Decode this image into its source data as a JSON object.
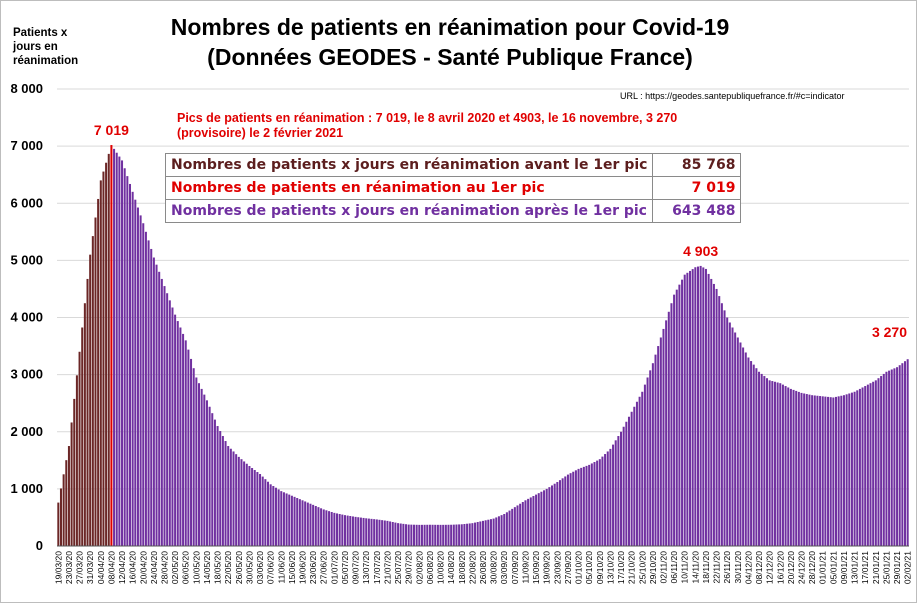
{
  "title_line1": "Nombres de patients en réanimation pour Covid-19",
  "title_line2": "(Données GEODES - Santé Publique France)",
  "ylabel": "Patients x\njours en\nréanimation",
  "url": "URL : https://geodes.santepubliquefrance.fr/#c=indicator",
  "peaks_note": "Pics de patients en réanimation : 7 019, le 8 avril 2020 et 4903, le 16 novembre, 3 270 (provisoire) le 2 février 2021",
  "stats_table": [
    {
      "label": "Nombres de patients x jours en réanimation avant le 1er pic",
      "value": "85 768",
      "color": "#5c1e1e"
    },
    {
      "label": "Nombres de patients en réanimation au 1er pic",
      "value": "7 019",
      "color": "#e00000"
    },
    {
      "label": "Nombres de patients x jours en réanimation après le 1er pic",
      "value": "643 488",
      "color": "#7030a0"
    }
  ],
  "colors": {
    "before_peak": "#6b2626",
    "peak": "#e00000",
    "after_peak": "#7030a0"
  },
  "chart_data": {
    "type": "bar",
    "title": "Nombres de patients en réanimation pour Covid-19",
    "subtitle": "(Données GEODES - Santé Publique France)",
    "ylabel": "Patients x jours en réanimation",
    "ylim": [
      0,
      8000
    ],
    "yticks": [
      0,
      1000,
      2000,
      3000,
      4000,
      5000,
      6000,
      7000,
      8000
    ],
    "ytick_labels": [
      "0",
      "1 000",
      "2 000",
      "3 000",
      "4 000",
      "5 000",
      "6 000",
      "7 000",
      "8 000"
    ],
    "grid": true,
    "start_date": "19/03/20",
    "end_date": "02/02/21",
    "xtick_labels": [
      "19/03/20",
      "23/03/20",
      "27/03/20",
      "31/03/20",
      "04/04/20",
      "08/04/20",
      "12/04/20",
      "16/04/20",
      "20/04/20",
      "24/04/20",
      "28/04/20",
      "02/05/20",
      "06/05/20",
      "10/05/20",
      "14/05/20",
      "18/05/20",
      "22/05/20",
      "26/05/20",
      "30/05/20",
      "03/06/20",
      "07/06/20",
      "11/06/20",
      "15/06/20",
      "19/06/20",
      "23/06/20",
      "27/06/20",
      "01/07/20",
      "05/07/20",
      "09/07/20",
      "13/07/20",
      "17/07/20",
      "21/07/20",
      "25/07/20",
      "29/07/20",
      "02/08/20",
      "06/08/20",
      "10/08/20",
      "14/08/20",
      "18/08/20",
      "22/08/20",
      "26/08/20",
      "30/08/20",
      "03/09/20",
      "07/09/20",
      "11/09/20",
      "15/09/20",
      "19/09/20",
      "23/09/20",
      "27/09/20",
      "01/10/20",
      "05/10/20",
      "09/10/20",
      "13/10/20",
      "17/10/20",
      "21/10/20",
      "25/10/20",
      "29/10/20",
      "02/11/20",
      "06/11/20",
      "10/11/20",
      "14/11/20",
      "18/11/20",
      "22/11/20",
      "26/11/20",
      "30/11/20",
      "04/12/20",
      "08/12/20",
      "12/12/20",
      "16/12/20",
      "20/12/20",
      "24/12/20",
      "28/12/20",
      "01/01/21",
      "05/01/21",
      "09/01/21",
      "13/01/21",
      "17/01/21",
      "21/01/21",
      "25/01/21",
      "29/01/21",
      "02/02/21"
    ],
    "key_points": [
      [
        "19/03/20",
        760
      ],
      [
        "23/03/20",
        1750
      ],
      [
        "27/03/20",
        3400
      ],
      [
        "31/03/20",
        5100
      ],
      [
        "04/04/20",
        6400
      ],
      [
        "08/04/20",
        7019
      ],
      [
        "12/04/20",
        6750
      ],
      [
        "16/04/20",
        6200
      ],
      [
        "20/04/20",
        5650
      ],
      [
        "24/04/20",
        5050
      ],
      [
        "28/04/20",
        4550
      ],
      [
        "02/05/20",
        4050
      ],
      [
        "06/05/20",
        3600
      ],
      [
        "10/05/20",
        2950
      ],
      [
        "14/05/20",
        2550
      ],
      [
        "18/05/20",
        2100
      ],
      [
        "22/05/20",
        1750
      ],
      [
        "26/05/20",
        1560
      ],
      [
        "30/05/20",
        1400
      ],
      [
        "03/06/20",
        1260
      ],
      [
        "07/06/20",
        1080
      ],
      [
        "11/06/20",
        960
      ],
      [
        "15/06/20",
        880
      ],
      [
        "19/06/20",
        800
      ],
      [
        "23/06/20",
        720
      ],
      [
        "27/06/20",
        640
      ],
      [
        "01/07/20",
        580
      ],
      [
        "05/07/20",
        540
      ],
      [
        "09/07/20",
        510
      ],
      [
        "13/07/20",
        485
      ],
      [
        "17/07/20",
        465
      ],
      [
        "21/07/20",
        440
      ],
      [
        "25/07/20",
        400
      ],
      [
        "29/07/20",
        375
      ],
      [
        "02/08/20",
        370
      ],
      [
        "06/08/20",
        372
      ],
      [
        "10/08/20",
        370
      ],
      [
        "14/08/20",
        372
      ],
      [
        "18/08/20",
        380
      ],
      [
        "22/08/20",
        400
      ],
      [
        "26/08/20",
        440
      ],
      [
        "30/08/20",
        480
      ],
      [
        "03/09/20",
        560
      ],
      [
        "07/09/20",
        680
      ],
      [
        "11/09/20",
        800
      ],
      [
        "15/09/20",
        900
      ],
      [
        "19/09/20",
        1000
      ],
      [
        "23/09/20",
        1120
      ],
      [
        "27/09/20",
        1250
      ],
      [
        "01/10/20",
        1350
      ],
      [
        "05/10/20",
        1420
      ],
      [
        "09/10/20",
        1520
      ],
      [
        "13/10/20",
        1700
      ],
      [
        "17/10/20",
        2000
      ],
      [
        "21/10/20",
        2350
      ],
      [
        "25/10/20",
        2700
      ],
      [
        "29/10/20",
        3200
      ],
      [
        "02/11/20",
        3800
      ],
      [
        "06/11/20",
        4400
      ],
      [
        "10/11/20",
        4750
      ],
      [
        "14/11/20",
        4880
      ],
      [
        "16/11/20",
        4903
      ],
      [
        "18/11/20",
        4850
      ],
      [
        "22/11/20",
        4500
      ],
      [
        "26/11/20",
        4000
      ],
      [
        "30/11/20",
        3650
      ],
      [
        "04/12/20",
        3300
      ],
      [
        "08/12/20",
        3050
      ],
      [
        "12/12/20",
        2900
      ],
      [
        "16/12/20",
        2850
      ],
      [
        "20/12/20",
        2750
      ],
      [
        "24/12/20",
        2680
      ],
      [
        "28/12/20",
        2640
      ],
      [
        "01/01/21",
        2620
      ],
      [
        "05/01/21",
        2600
      ],
      [
        "09/01/21",
        2640
      ],
      [
        "13/01/21",
        2700
      ],
      [
        "17/01/21",
        2800
      ],
      [
        "21/01/21",
        2900
      ],
      [
        "25/01/21",
        3050
      ],
      [
        "29/01/21",
        3130
      ],
      [
        "02/02/21",
        3270
      ]
    ],
    "peak_labels": [
      {
        "date": "08/04/20",
        "value": 7019,
        "text": "7 019"
      },
      {
        "date": "16/11/20",
        "value": 4903,
        "text": "4 903"
      },
      {
        "date": "02/02/21",
        "value": 3270,
        "text": "3 270"
      }
    ]
  }
}
